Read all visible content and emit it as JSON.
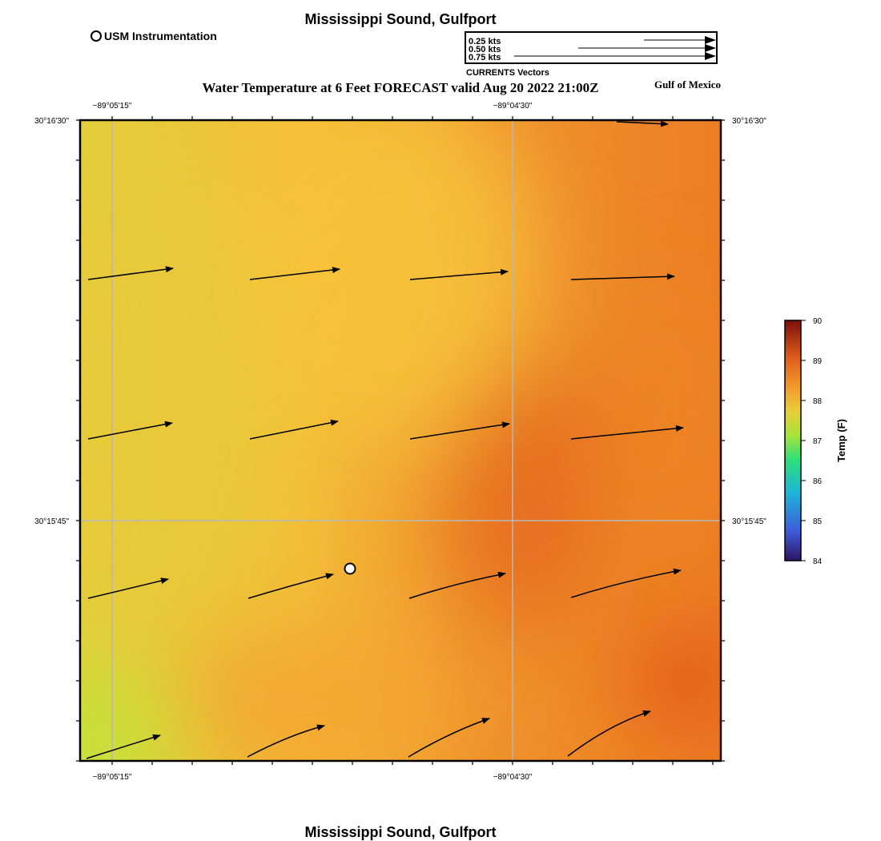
{
  "header": {
    "title": "Mississippi Sound, Gulfport",
    "legend_station_label": "USM Instrumentation",
    "map_title": "Water Temperature at 6 Feet FORECAST valid Aug 20 2022 21:00Z",
    "region_label": "Gulf of Mexico"
  },
  "vector_legend": {
    "items": [
      {
        "label": "0.25 kts",
        "speed_kts": 0.25
      },
      {
        "label": "0.50 kts",
        "speed_kts": 0.5
      },
      {
        "label": "0.75 kts",
        "speed_kts": 0.75
      }
    ],
    "caption": "CURRENTS Vectors"
  },
  "footer": {
    "title": "Mississippi Sound, Gulfport"
  },
  "map": {
    "lon_ticks": [
      "−89°05'15\"",
      "−89°04'30\""
    ],
    "lat_ticks": [
      "30°16'30\"",
      "30°15'45\""
    ],
    "station_marker": {
      "name": "USM Instrumentation"
    },
    "field_colors": {
      "yellow_green": "#c8e03a",
      "yellow": "#e6cf3c",
      "gold": "#f6b93a",
      "orange": "#f19a2e",
      "dark_orange": "#ea7a22",
      "red_orange": "#e45a18"
    }
  },
  "colorbar": {
    "label": "Temp (F)",
    "ticks": [
      "90",
      "89",
      "88",
      "87",
      "86",
      "85",
      "84"
    ],
    "min": 84,
    "max": 90,
    "colors": [
      "#2f1462",
      "#3e5ad8",
      "#1fb3d9",
      "#2ddf7a",
      "#a4e33a",
      "#e9cf3a",
      "#f29b2d",
      "#dd5a1c",
      "#7a0f0a"
    ]
  }
}
